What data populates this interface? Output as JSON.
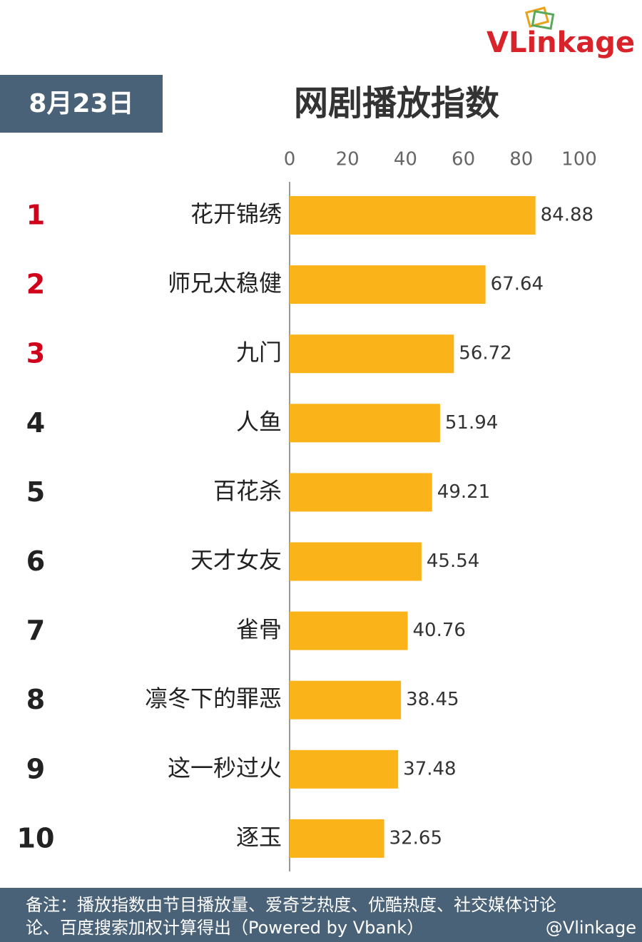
{
  "chart_data": {
    "type": "bar",
    "orientation": "horizontal",
    "logo": "VLinkage",
    "date_label": "8月23日",
    "title": "网剧播放指数",
    "ranks": [
      1,
      2,
      3,
      4,
      5,
      6,
      7,
      8,
      9,
      10
    ],
    "rank_colors": [
      "#d0021b",
      "#d0021b",
      "#d0021b",
      "#222222",
      "#222222",
      "#222222",
      "#222222",
      "#222222",
      "#222222",
      "#222222"
    ],
    "categories": [
      "花开锦绣",
      "师兄太稳健",
      "九门",
      "人鱼",
      "百花杀",
      "天才女友",
      "雀骨",
      "凛冬下的罪恶",
      "这一秒过火",
      "逐玉"
    ],
    "values": [
      84.88,
      67.64,
      56.72,
      51.94,
      49.21,
      45.54,
      40.76,
      38.45,
      37.48,
      32.65
    ],
    "color": "#fbb31a",
    "xlim": [
      0,
      100
    ],
    "xticks": [
      0,
      20,
      40,
      60,
      80,
      100
    ],
    "note_lines": [
      "备注：播放指数由节目播放量、爱奇艺热度、优酷热度、社交媒体讨论",
      "论、百度搜索加权计算得出（Powered by Vbank）"
    ],
    "watermark": "@Vlinkage"
  }
}
